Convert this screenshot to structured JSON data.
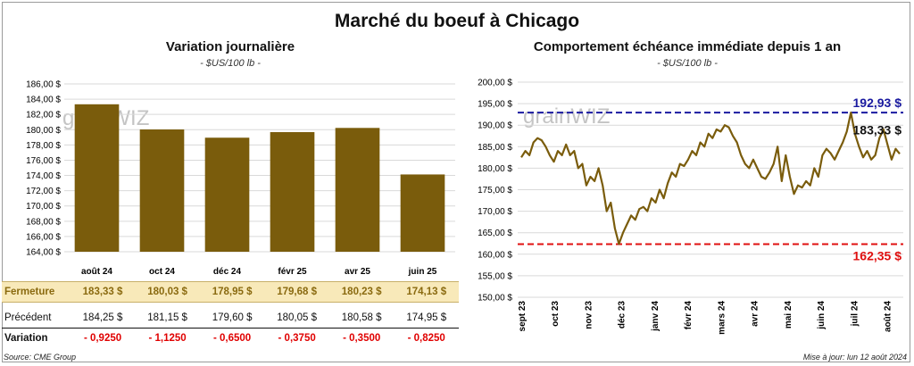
{
  "title": "Marché du boeuf à Chicago",
  "left": {
    "title": "Variation  journalière",
    "unit": "- $US/100 lb -",
    "chart_data": {
      "type": "bar",
      "categories": [
        "août 24",
        "oct 24",
        "déc 24",
        "févr 25",
        "avr 25",
        "juin 25"
      ],
      "values": [
        183.33,
        180.03,
        178.95,
        179.68,
        180.23,
        174.13
      ],
      "ylim": [
        164,
        186
      ],
      "yticks": [
        "164,00 $",
        "166,00 $",
        "168,00 $",
        "170,00 $",
        "172,00 $",
        "174,00 $",
        "176,00 $",
        "178,00 $",
        "180,00 $",
        "182,00 $",
        "184,00 $",
        "186,00 $"
      ],
      "grid": true,
      "color": "#7a5c0c"
    },
    "table": {
      "rows": [
        {
          "label": "Fermeture",
          "values": [
            "183,33  $",
            "180,03  $",
            "178,95  $",
            "179,68  $",
            "180,23  $",
            "174,13  $"
          ]
        },
        {
          "label": "Précédent",
          "values": [
            "184,25  $",
            "181,15  $",
            "179,60  $",
            "180,05  $",
            "180,58  $",
            "174,95  $"
          ]
        },
        {
          "label": "Variation",
          "values": [
            "- 0,9250",
            "- 1,1250",
            "- 0,6500",
            "- 0,3750",
            "- 0,3500",
            "- 0,8250"
          ]
        }
      ]
    }
  },
  "right": {
    "title": "Comportement  échéance immédiate depuis 1 an",
    "unit": "- $US/100 lb -",
    "chart_data": {
      "type": "line",
      "x_labels": [
        "sept 23",
        "oct 23",
        "nov 23",
        "déc 23",
        "janv 24",
        "févr 24",
        "mars 24",
        "avr 24",
        "mai 24",
        "juin 24",
        "juil 24",
        "août 24"
      ],
      "ylim": [
        150,
        200
      ],
      "yticks": [
        "150,00 $",
        "155,00 $",
        "160,00 $",
        "165,00 $",
        "170,00 $",
        "175,00 $",
        "180,00 $",
        "185,00 $",
        "190,00 $",
        "195,00 $",
        "200,00 $"
      ],
      "grid": true,
      "line_color": "#7a5c0c",
      "values": [
        182.5,
        184,
        183,
        186,
        187,
        186.5,
        185,
        183,
        181.5,
        184,
        183,
        185.5,
        183,
        184,
        180,
        181,
        176,
        178,
        177,
        180,
        176,
        170,
        172,
        166,
        162.4,
        165,
        167,
        169,
        168,
        170.5,
        171,
        170,
        173,
        172,
        175,
        173,
        176.5,
        179,
        178,
        181,
        180.5,
        182,
        184,
        183,
        186,
        185,
        188,
        187,
        189,
        188.5,
        190,
        189.5,
        187.5,
        186,
        183,
        181,
        180,
        182,
        180,
        178,
        177.5,
        179,
        181,
        185,
        177,
        183,
        178,
        174,
        176,
        175.5,
        177,
        176,
        180,
        178,
        183,
        184.5,
        183.5,
        182,
        184,
        186,
        188.5,
        192.93,
        188,
        185,
        182.5,
        184,
        182,
        183,
        187,
        189,
        185.5,
        182,
        184.5,
        183.33
      ],
      "ref_lines": [
        {
          "label": "192,93 $",
          "value": 192.93,
          "color": "#1a1aa0"
        },
        {
          "label": "162,35 $",
          "value": 162.35,
          "color": "#e01010"
        }
      ],
      "last_label": "183,33 $"
    }
  },
  "watermark": "grainWIZ",
  "source": "Source: CME Group",
  "updated": "Mise à jour: lun 12 août 2024"
}
